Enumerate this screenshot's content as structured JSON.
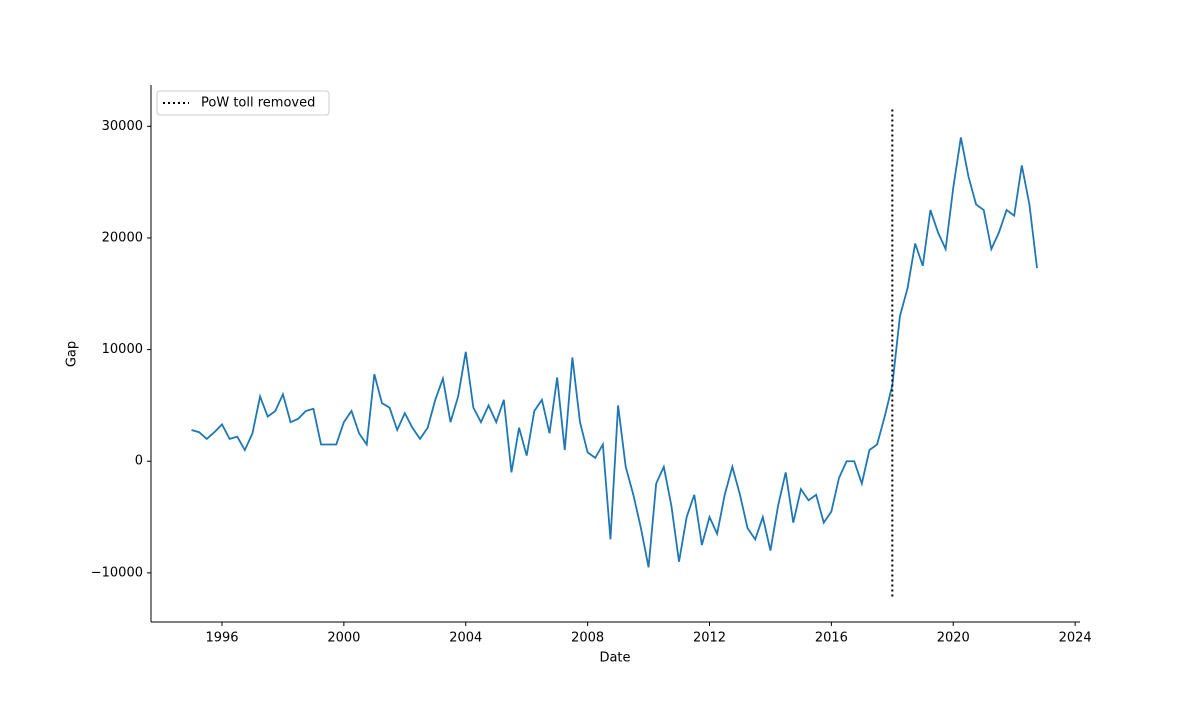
{
  "chart_data": {
    "type": "line",
    "xlabel": "Date",
    "ylabel": "Gap",
    "x": [
      1995,
      1995.25,
      1995.5,
      1995.75,
      1996,
      1996.25,
      1996.5,
      1996.75,
      1997,
      1997.25,
      1997.5,
      1997.75,
      1998,
      1998.25,
      1998.5,
      1998.75,
      1999,
      1999.25,
      1999.5,
      1999.75,
      2000,
      2000.25,
      2000.5,
      2000.75,
      2001,
      2001.25,
      2001.5,
      2001.75,
      2002,
      2002.25,
      2002.5,
      2002.75,
      2003,
      2003.25,
      2003.5,
      2003.75,
      2004,
      2004.25,
      2004.5,
      2004.75,
      2005,
      2005.25,
      2005.5,
      2005.75,
      2006,
      2006.25,
      2006.5,
      2006.75,
      2007,
      2007.25,
      2007.5,
      2007.75,
      2008,
      2008.25,
      2008.5,
      2008.75,
      2009,
      2009.25,
      2009.5,
      2009.75,
      2010,
      2010.25,
      2010.5,
      2010.75,
      2011,
      2011.25,
      2011.5,
      2011.75,
      2012,
      2012.25,
      2012.5,
      2012.75,
      2013,
      2013.25,
      2013.5,
      2013.75,
      2014,
      2014.25,
      2014.5,
      2014.75,
      2015,
      2015.25,
      2015.5,
      2015.75,
      2016,
      2016.25,
      2016.5,
      2016.75,
      2017,
      2017.25,
      2017.5,
      2017.75,
      2018,
      2018.25,
      2018.5,
      2018.75,
      2019,
      2019.25,
      2019.5,
      2019.75,
      2020,
      2020.25,
      2020.5,
      2020.75,
      2021,
      2021.25,
      2021.5,
      2021.75,
      2022,
      2022.25,
      2022.5,
      2022.75
    ],
    "values": [
      2800,
      2600,
      2000,
      2600,
      3300,
      2000,
      2200,
      1000,
      2500,
      5800,
      4000,
      4500,
      6000,
      3500,
      3800,
      4500,
      4700,
      1500,
      1500,
      1500,
      3500,
      4500,
      2500,
      1500,
      7800,
      5200,
      4800,
      2800,
      4300,
      3000,
      2000,
      3000,
      5500,
      7400,
      3500,
      5800,
      9800,
      4800,
      3500,
      5000,
      3500,
      5500,
      -1000,
      3000,
      500,
      4500,
      5500,
      2500,
      7500,
      1000,
      9300,
      3500,
      800,
      300,
      1500,
      -7000,
      5000,
      -500,
      -3000,
      -6000,
      -9500,
      -2000,
      -500,
      -4000,
      -9000,
      -5000,
      -3000,
      -7500,
      -5000,
      -6500,
      -3000,
      -500,
      -3000,
      -6000,
      -7000,
      -5000,
      -8000,
      -4000,
      -1000,
      -5500,
      -2500,
      -3500,
      -3000,
      -5500,
      -4500,
      -1500,
      0,
      0,
      -2000,
      1000,
      1500,
      4000,
      6800,
      13000,
      15500,
      19500,
      17500,
      22500,
      20500,
      19000,
      24500,
      29000,
      25500,
      23000,
      22500,
      19000,
      20500,
      22500,
      22000,
      26500,
      23000,
      17300
    ],
    "color": "#1f77b4",
    "xlim": [
      1993.67,
      2024.16
    ],
    "xticks": [
      1996,
      2000,
      2004,
      2008,
      2012,
      2016,
      2020,
      2024
    ],
    "ylim": [
      -14400,
      33700
    ],
    "yticks": [
      {
        "value": -10000,
        "label": "−10000"
      },
      0,
      10000,
      20000,
      30000
    ],
    "vline": {
      "x": 2018,
      "ymin": -12300,
      "ymax": 31500,
      "label": "PoW toll removed",
      "color": "#000000"
    },
    "legend": "upper left"
  }
}
